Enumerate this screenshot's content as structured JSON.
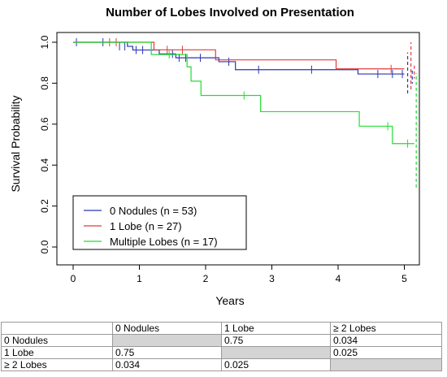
{
  "chart_data": {
    "type": "line",
    "title": "Number of Lobes Involved on Presentation",
    "xlabel": "Years",
    "ylabel": "Survival Probability",
    "xlim": [
      0,
      5.25
    ],
    "ylim": [
      0,
      1.0
    ],
    "xticks": [
      "0",
      "1",
      "2",
      "3",
      "4",
      "5"
    ],
    "yticks": [
      "0.0",
      "0.2",
      "0.4",
      "0.6",
      "0.8",
      "1.0"
    ],
    "legend_position": "bottom-left",
    "series": [
      {
        "name": "0 Nodules (n = 53)",
        "color": "#2b35b5",
        "steps": [
          [
            0,
            1.0
          ],
          [
            0.82,
            0.98
          ],
          [
            0.9,
            0.962
          ],
          [
            1.3,
            0.943
          ],
          [
            1.55,
            0.924
          ],
          [
            2.2,
            0.905
          ],
          [
            2.45,
            0.866
          ],
          [
            4.3,
            0.845
          ],
          [
            5.0,
            0.845
          ]
        ],
        "censors": [
          [
            0.05,
            1.0
          ],
          [
            0.45,
            1.0
          ],
          [
            0.7,
            0.98
          ],
          [
            0.78,
            0.98
          ],
          [
            0.95,
            0.962
          ],
          [
            1.05,
            0.962
          ],
          [
            1.5,
            0.943
          ],
          [
            1.6,
            0.924
          ],
          [
            1.7,
            0.924
          ],
          [
            1.92,
            0.924
          ],
          [
            2.35,
            0.905
          ],
          [
            2.8,
            0.866
          ],
          [
            3.6,
            0.866
          ],
          [
            4.6,
            0.845
          ],
          [
            4.82,
            0.845
          ],
          [
            4.97,
            0.845
          ]
        ],
        "ci_x": 5.05,
        "ci_range": [
          0.75,
          0.95
        ],
        "ci_tail": [
          5.12,
          0.845
        ]
      },
      {
        "name": "1 Lobe (n = 27)",
        "color": "#e03c3c",
        "steps": [
          [
            0,
            1.0
          ],
          [
            1.22,
            0.963
          ],
          [
            2.15,
            0.914
          ],
          [
            3.97,
            0.87
          ],
          [
            5.0,
            0.87
          ]
        ],
        "censors": [
          [
            0.55,
            1.0
          ],
          [
            0.65,
            1.0
          ],
          [
            1.42,
            0.963
          ],
          [
            1.65,
            0.963
          ],
          [
            4.8,
            0.87
          ]
        ],
        "ci_x": 5.1,
        "ci_range": [
          0.77,
          1.0
        ],
        "ci_tail": [
          5.15,
          0.87
        ]
      },
      {
        "name": "Multiple Lobes (n = 17)",
        "color": "#22dd33",
        "steps": [
          [
            0,
            1.0
          ],
          [
            1.18,
            0.94
          ],
          [
            1.72,
            0.88
          ],
          [
            1.78,
            0.81
          ],
          [
            1.93,
            0.74
          ],
          [
            2.83,
            0.661
          ],
          [
            4.32,
            0.59
          ],
          [
            4.82,
            0.505
          ],
          [
            5.15,
            0.505
          ]
        ],
        "censors": [
          [
            1.45,
            0.94
          ],
          [
            2.58,
            0.74
          ],
          [
            4.75,
            0.59
          ],
          [
            5.05,
            0.505
          ]
        ],
        "ci_x": 5.18,
        "ci_range": [
          0.29,
          0.85
        ],
        "ci_tail": null
      }
    ]
  },
  "table": {
    "headers": [
      "",
      "0 Nodules",
      "1 Lobe",
      "≥ 2 Lobes"
    ],
    "rows": [
      {
        "label": "0 Nodules",
        "cells": [
          "",
          "0.75",
          "0.034"
        ]
      },
      {
        "label": "1 Lobe",
        "cells": [
          "0.75",
          "",
          "0.025"
        ]
      },
      {
        "label": "≥ 2 Lobes",
        "cells": [
          "0.034",
          "0.025",
          ""
        ]
      }
    ]
  }
}
